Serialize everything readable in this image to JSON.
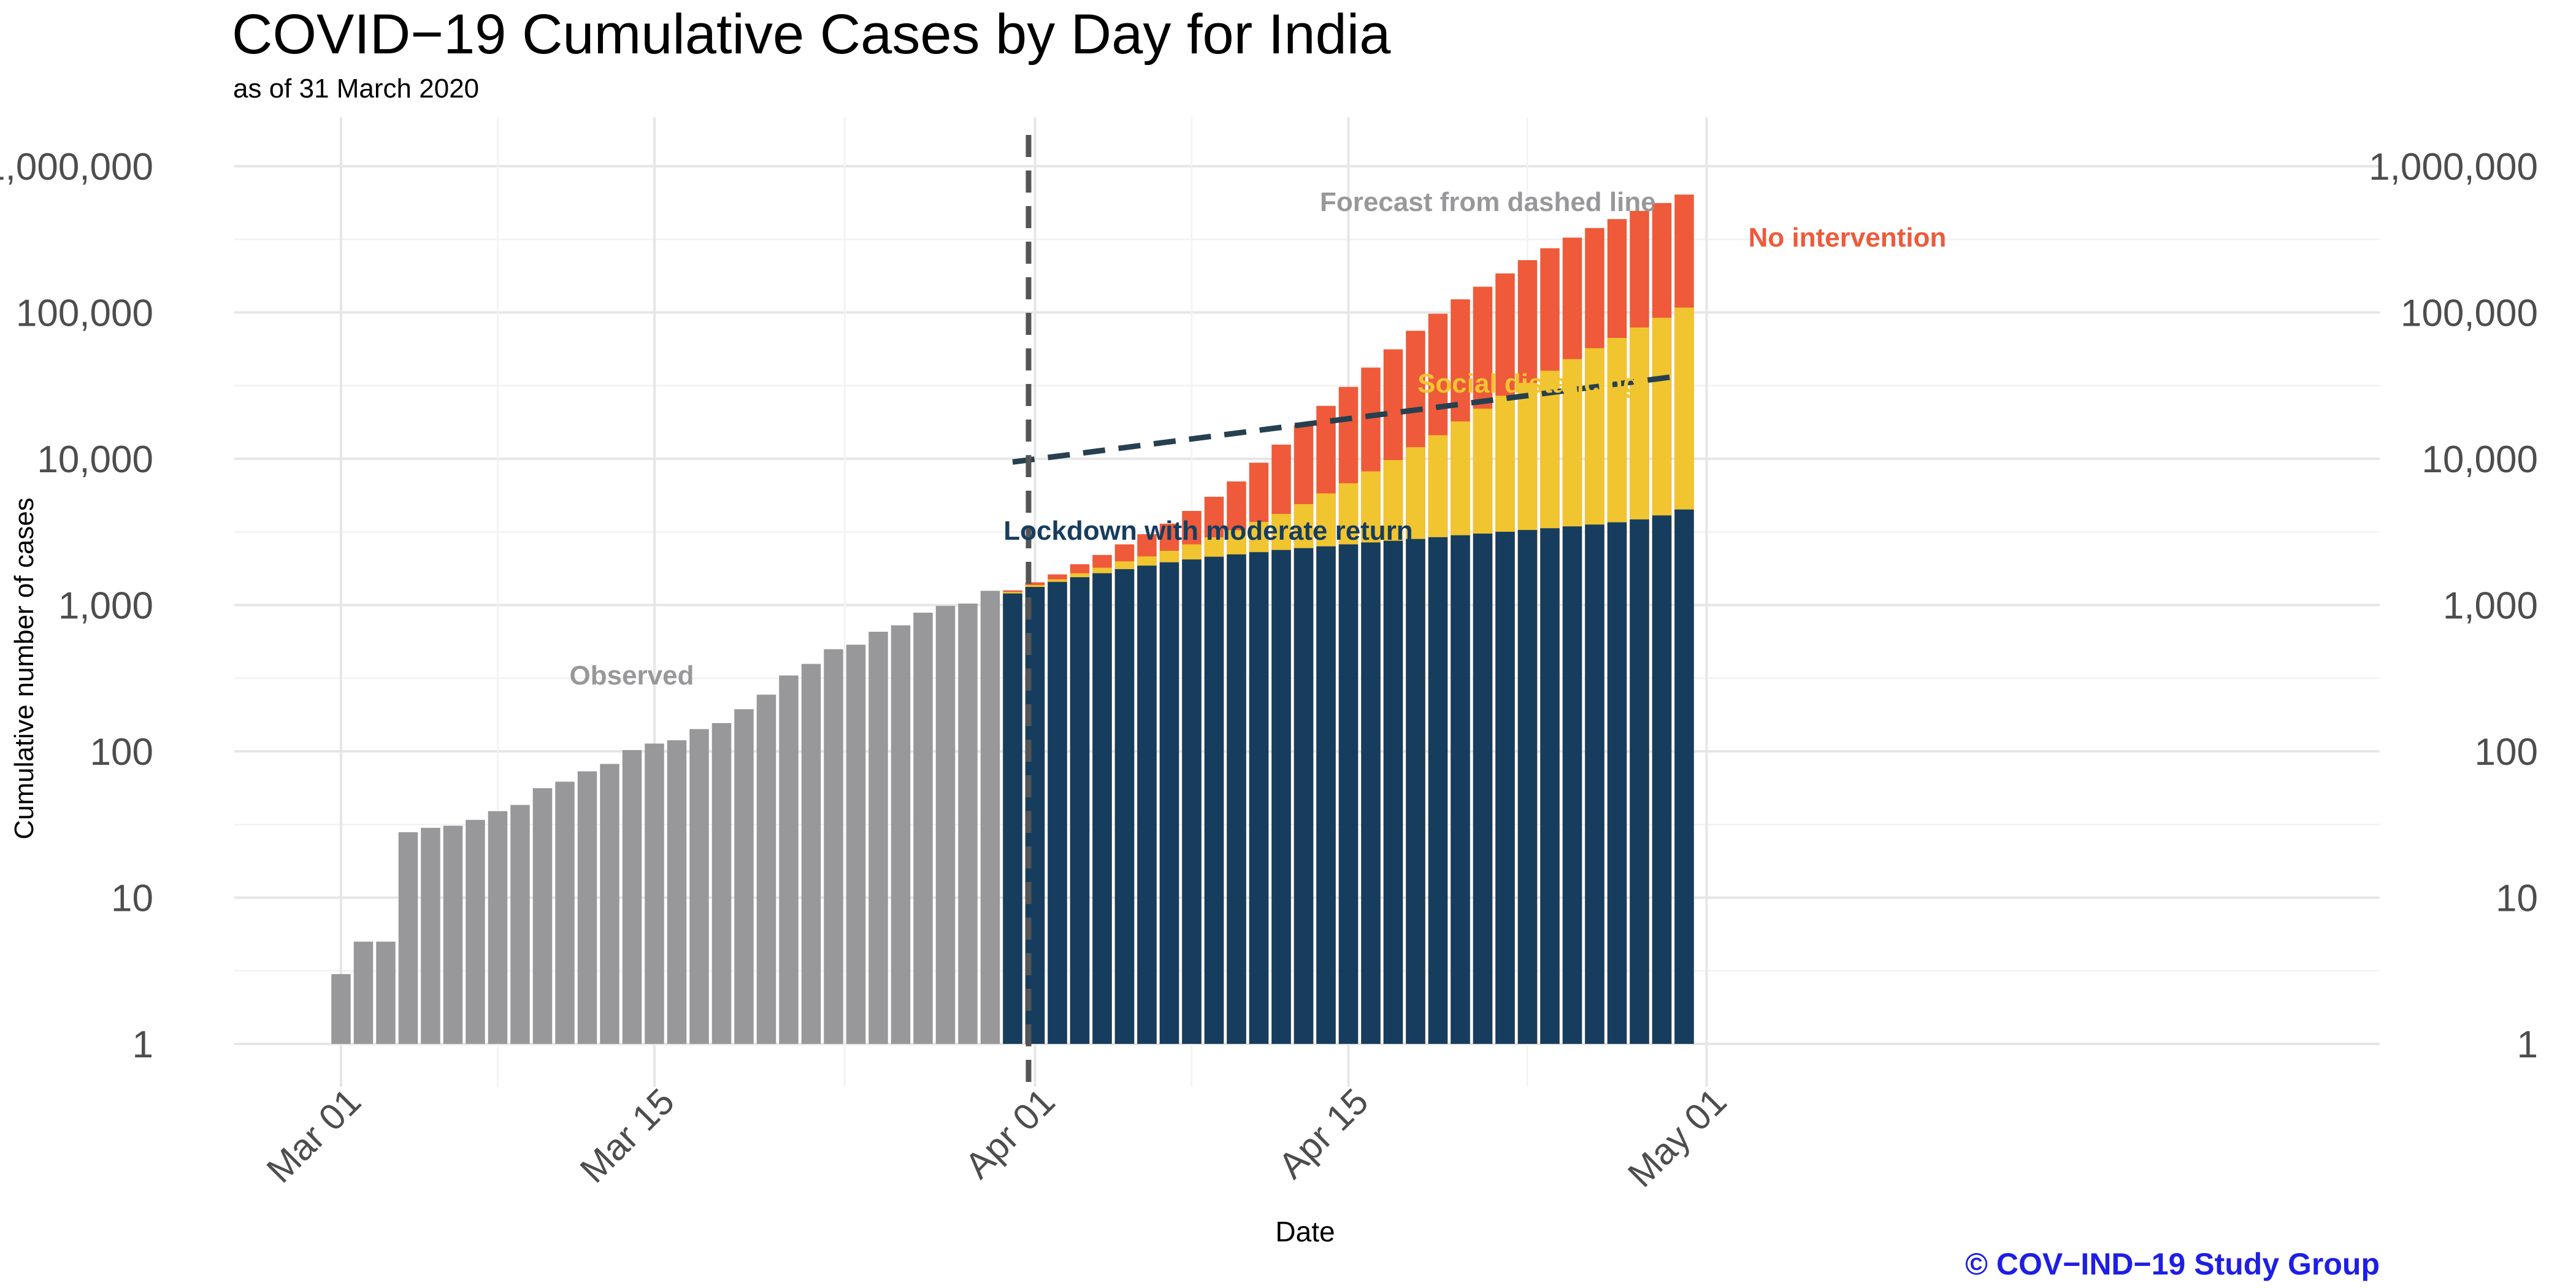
{
  "title": "COVID−19 Cumulative Cases by Day for India",
  "subtitle": "as of 31 March 2020",
  "credit": "© COV−IND−19 Study Group",
  "chart_data": {
    "type": "bar",
    "title": "COVID−19 Cumulative Cases by Day for India",
    "subtitle": "as of 31 March 2020",
    "xlabel": "Date",
    "ylabel": "Cumulative number of cases",
    "y_scale": "log10",
    "ylim": [
      1,
      1000000
    ],
    "y_ticks": [
      1,
      10,
      100,
      1000,
      10000,
      100000,
      1000000
    ],
    "y_tick_labels": [
      "1",
      "10",
      "100",
      "1,000",
      "10,000",
      "100,000",
      "1,000,000"
    ],
    "x_tick_dates": [
      "2020-03-01",
      "2020-03-15",
      "2020-04-01",
      "2020-04-15",
      "2020-05-01"
    ],
    "x_tick_labels": [
      "Mar 01",
      "Mar 15",
      "Apr 01",
      "Apr 15",
      "May 01"
    ],
    "grid": true,
    "axis_right_duplicate": true,
    "colors": {
      "observed": "#98989a",
      "no_intervention": "#ee5a3a",
      "social_distancing": "#f0c530",
      "lockdown": "#163d5e",
      "dashed_line": "#26404f",
      "forecast_line": "#555555"
    },
    "forecast_start": "2020-03-31",
    "annotations": {
      "observed": "Observed",
      "forecast": "Forecast from dashed line",
      "no_intervention": "No intervention",
      "social_distancing": "Social distancing",
      "lockdown": "Lockdown with moderate return"
    },
    "observed": {
      "name": "Observed",
      "dates": [
        "2020-03-01",
        "2020-03-02",
        "2020-03-03",
        "2020-03-04",
        "2020-03-05",
        "2020-03-06",
        "2020-03-07",
        "2020-03-08",
        "2020-03-09",
        "2020-03-10",
        "2020-03-11",
        "2020-03-12",
        "2020-03-13",
        "2020-03-14",
        "2020-03-15",
        "2020-03-16",
        "2020-03-17",
        "2020-03-18",
        "2020-03-19",
        "2020-03-20",
        "2020-03-21",
        "2020-03-22",
        "2020-03-23",
        "2020-03-24",
        "2020-03-25",
        "2020-03-26",
        "2020-03-27",
        "2020-03-28",
        "2020-03-29",
        "2020-03-30"
      ],
      "values": [
        3,
        5,
        5,
        28,
        30,
        31,
        34,
        39,
        43,
        56,
        62,
        73,
        82,
        102,
        113,
        119,
        142,
        156,
        194,
        244,
        330,
        396,
        499,
        536,
        657,
        727,
        887,
        987,
        1024,
        1251
      ]
    },
    "forecast": {
      "dates": [
        "2020-03-31",
        "2020-04-01",
        "2020-04-02",
        "2020-04-03",
        "2020-04-04",
        "2020-04-05",
        "2020-04-06",
        "2020-04-07",
        "2020-04-08",
        "2020-04-09",
        "2020-04-10",
        "2020-04-11",
        "2020-04-12",
        "2020-04-13",
        "2020-04-14",
        "2020-04-15",
        "2020-04-16",
        "2020-04-17",
        "2020-04-18",
        "2020-04-19",
        "2020-04-20",
        "2020-04-21",
        "2020-04-22",
        "2020-04-23",
        "2020-04-24",
        "2020-04-25",
        "2020-04-26",
        "2020-04-27",
        "2020-04-28",
        "2020-04-29",
        "2020-04-30"
      ],
      "series": [
        {
          "key": "no_intervention",
          "values": [
            1260,
            1430,
            1620,
            1900,
            2200,
            2600,
            3050,
            3600,
            4400,
            5500,
            7000,
            9400,
            12500,
            17000,
            23000,
            31000,
            42000,
            56000,
            75000,
            98000,
            123000,
            150000,
            185000,
            228000,
            275000,
            325000,
            378000,
            435000,
            495000,
            560000,
            640000
          ]
        },
        {
          "key": "social_distancing",
          "values": [
            1230,
            1370,
            1500,
            1650,
            1800,
            1990,
            2150,
            2350,
            2600,
            2900,
            3250,
            3700,
            4200,
            4900,
            5800,
            6800,
            8200,
            9800,
            12000,
            14500,
            18000,
            22000,
            27000,
            33000,
            40000,
            48000,
            57000,
            67000,
            79000,
            92000,
            108000
          ]
        },
        {
          "key": "lockdown",
          "values": [
            1200,
            1330,
            1440,
            1550,
            1650,
            1760,
            1860,
            1960,
            2050,
            2140,
            2220,
            2300,
            2380,
            2450,
            2520,
            2600,
            2680,
            2750,
            2830,
            2910,
            3000,
            3080,
            3170,
            3260,
            3350,
            3450,
            3550,
            3680,
            3850,
            4100,
            4500
          ]
        }
      ]
    },
    "dashed_line": {
      "dates": [
        "2020-03-31",
        "2020-04-30"
      ],
      "values": [
        9500,
        37000
      ]
    }
  }
}
